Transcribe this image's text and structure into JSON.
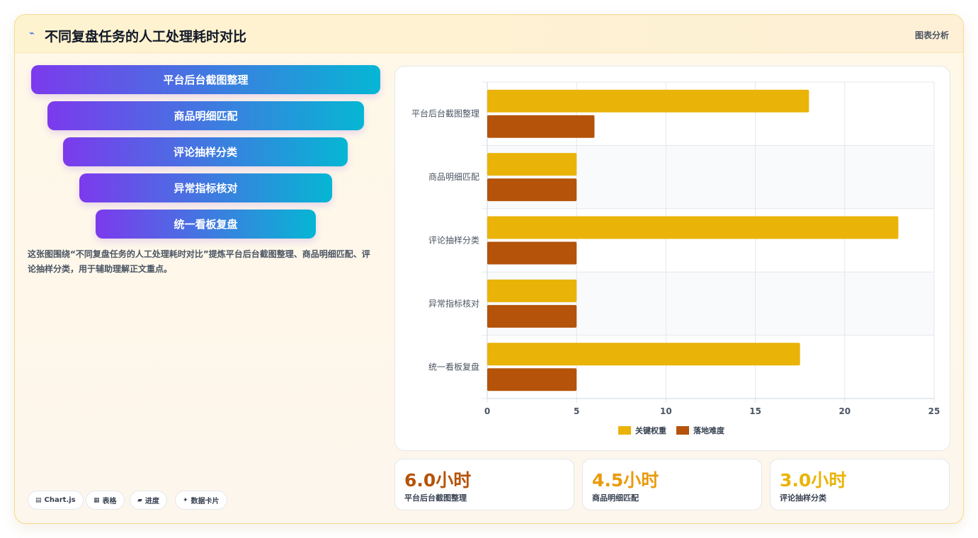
{
  "header": {
    "icon": "bolt-icon",
    "title": "不同复盘任务的人工处理耗时对比",
    "tag": "图表分析"
  },
  "funnel": {
    "items": [
      {
        "label": "平台后台截图整理"
      },
      {
        "label": "商品明细匹配"
      },
      {
        "label": "评论抽样分类"
      },
      {
        "label": "异常指标核对"
      },
      {
        "label": "统一看板复盘"
      }
    ]
  },
  "description": "这张图围绕“不同复盘任务的人工处理耗时对比”提炼平台后台截图整理、商品明细匹配、评论抽样分类，用于辅助理解正文重点。",
  "chips": [
    {
      "icon": "chart-icon",
      "glyph": "▤",
      "label": "Chart.js"
    },
    {
      "icon": "table-icon",
      "glyph": "▦",
      "label": "表格"
    },
    {
      "icon": "progress-icon",
      "glyph": "▰",
      "label": "进度"
    },
    {
      "icon": "card-icon",
      "glyph": "✦",
      "label": "数据卡片"
    }
  ],
  "chart_data": {
    "type": "bar",
    "orientation": "horizontal",
    "categories": [
      "平台后台截图整理",
      "商品明细匹配",
      "评论抽样分类",
      "异常指标核对",
      "统一看板复盘"
    ],
    "series": [
      {
        "name": "关键权重",
        "color": "#eab308",
        "values": [
          18,
          5,
          23,
          5,
          17.5
        ]
      },
      {
        "name": "落地难度",
        "color": "#b45309",
        "values": [
          6,
          5,
          5,
          5,
          5
        ]
      }
    ],
    "xlim": [
      0,
      25
    ],
    "xticks": [
      0,
      5,
      10,
      15,
      20,
      25
    ],
    "grid": true,
    "legend": "bottom"
  },
  "stats": [
    {
      "value": "6.0小时",
      "label": "平台后台截图整理",
      "color": "#b45309"
    },
    {
      "value": "4.5小时",
      "label": "商品明细匹配",
      "color": "#ea9a0b"
    },
    {
      "value": "3.0小时",
      "label": "评论抽样分类",
      "color": "#eab308"
    }
  ]
}
